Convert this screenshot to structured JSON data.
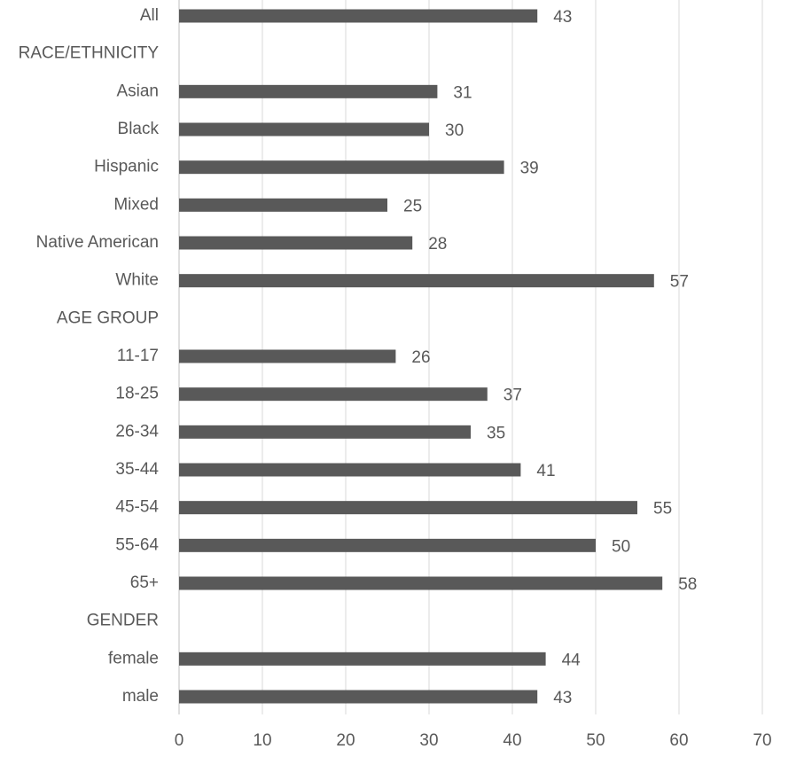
{
  "chart_data": {
    "type": "bar",
    "orientation": "horizontal",
    "categories": [
      "All",
      "RACE/ETHNICITY",
      "Asian",
      "Black",
      "Hispanic",
      "Mixed",
      "Native American",
      "White",
      "AGE GROUP",
      "11-17",
      "18-25",
      "26-34",
      "35-44",
      "45-54",
      "55-64",
      "65+",
      "GENDER",
      "female",
      "male"
    ],
    "values": [
      43,
      null,
      31,
      30,
      39,
      25,
      28,
      57,
      null,
      26,
      37,
      35,
      41,
      55,
      50,
      58,
      null,
      44,
      43
    ],
    "color": "#595959",
    "xlim": [
      0,
      70
    ],
    "xticks": [
      0,
      10,
      20,
      30,
      40,
      50,
      60,
      70
    ],
    "grid": true
  }
}
